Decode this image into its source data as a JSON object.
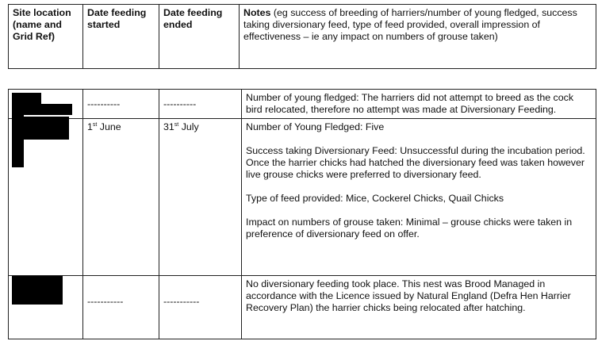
{
  "header": {
    "col1": "Site location (name and Grid Ref)",
    "col2": "Date feeding started",
    "col3": "Date feeding ended",
    "col4_bold": "Notes",
    "col4_rest": " (eg success of breeding of harriers/number of young fledged, success taking diversionary feed, type of feed provided, overall impression of effectiveness – ie any impact on numbers of grouse taken)"
  },
  "rows": [
    {
      "site": "[redacted]",
      "started": "----------",
      "ended": "----------",
      "notes": [
        "Number of young fledged: The harriers did not attempt to breed as the cock bird relocated, therefore no attempt was made at Diversionary Feeding."
      ]
    },
    {
      "site": "[redacted]",
      "started_day": "1",
      "started_sup": "st",
      "started_month": " June",
      "ended_day": "31",
      "ended_sup": "st",
      "ended_month": " July",
      "notes": [
        "Number of Young Fledged: Five",
        "Success taking Diversionary Feed: Unsuccessful during the incubation period. Once the harrier chicks had hatched the diversionary feed was taken however live grouse chicks were preferred to diversionary feed.",
        "Type of feed provided: Mice, Cockerel Chicks, Quail Chicks",
        "Impact on numbers of grouse taken: Minimal – grouse chicks were taken in preference of diversionary feed on offer."
      ]
    },
    {
      "site": "[redacted]",
      "started": "-----------",
      "ended": "-----------",
      "notes": [
        "No diversionary feeding took place. This nest was Brood Managed in accordance with the Licence issued by Natural England (Defra Hen Harrier Recovery Plan) the harrier chicks being relocated after hatching."
      ]
    }
  ]
}
